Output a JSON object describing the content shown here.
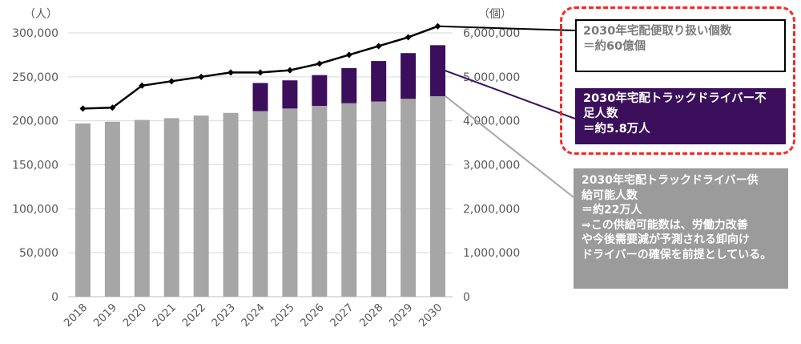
{
  "chart_data": {
    "type": "bar",
    "categories": [
      "2018",
      "2019",
      "2020",
      "2021",
      "2022",
      "2023",
      "2024",
      "2025",
      "2026",
      "2027",
      "2028",
      "2029",
      "2030"
    ],
    "series": [
      {
        "values": [
          197000,
          199000,
          201000,
          203000,
          206000,
          209000,
          211000,
          214000,
          217000,
          220000,
          222000,
          225000,
          228000
        ],
        "axis": "left",
        "color": "#a6a6a6"
      },
      {
        "values": [
          0,
          0,
          0,
          0,
          0,
          0,
          32000,
          32000,
          35000,
          40000,
          46000,
          52000,
          58000
        ],
        "axis": "left",
        "color": "#3b0f5c",
        "stacked": true
      },
      {
        "values": [
          4280000,
          4300000,
          4800000,
          4900000,
          5000000,
          5100000,
          5100000,
          5150000,
          5300000,
          5500000,
          5700000,
          5900000,
          6150000
        ],
        "axis": "right",
        "type": "line",
        "color": "#000000"
      }
    ],
    "ylabel": "（人）",
    "y2label": "（個）",
    "ylim": [
      0,
      300000
    ],
    "y2lim": [
      0,
      6000000
    ],
    "yticks": [
      "0",
      "50,000",
      "100,000",
      "150,000",
      "200,000",
      "250,000",
      "300,000"
    ],
    "y2ticks": [
      "0",
      "1,000,000",
      "2,000,000",
      "3,000,000",
      "4,000,000",
      "5,000,000",
      "6,000,000"
    ],
    "grid": true
  },
  "annotations": {
    "total": [
      "2030年宅配便取り扱い個数",
      "＝約60億個"
    ],
    "shortage": [
      "2030年宅配トラックドライバー不",
      "足人数",
      "＝約5.8万人"
    ],
    "supply": [
      "2030年宅配トラックドライバー供",
      "給可能人数",
      "＝約22万人",
      "⇒この供給可能数は、労働力改善",
      "や今後需要減が予測される卸向け",
      "ドライバーの確保を前提としている。"
    ]
  },
  "colors": {
    "dash_frame": "#ff2424",
    "supply_box": "#9b9b9b",
    "shortage_box": "#3b0f5c"
  }
}
